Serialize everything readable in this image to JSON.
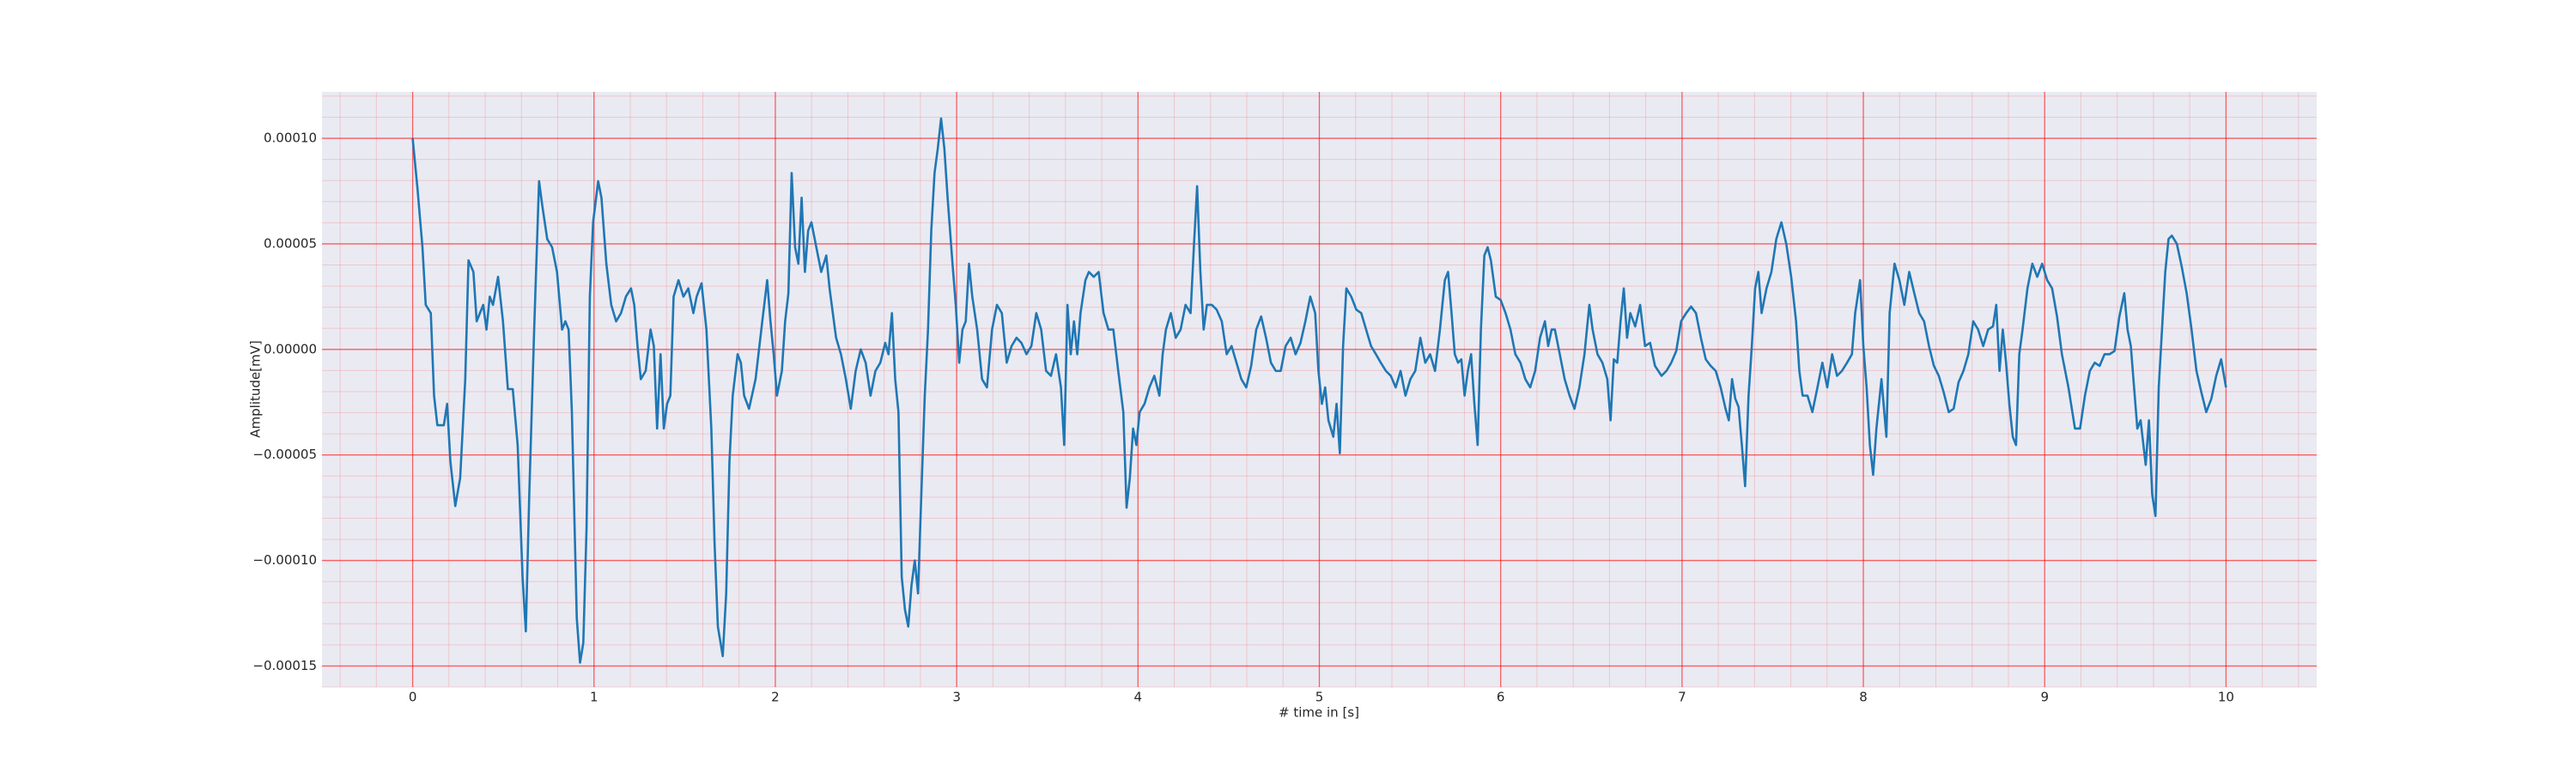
{
  "chart_data": {
    "type": "line",
    "xlabel": "# time in [s]",
    "ylabel": "Amplitude[mV]",
    "xlim": [
      -0.5,
      10.5
    ],
    "ylim": [
      -0.00016,
      0.000122
    ],
    "xticks": [
      0,
      1,
      2,
      3,
      4,
      5,
      6,
      7,
      8,
      9,
      10
    ],
    "yticks": [
      {
        "value": -0.00015,
        "label": "−0.00015"
      },
      {
        "value": -0.0001,
        "label": "−0.00010"
      },
      {
        "value": -5e-05,
        "label": "−0.00005"
      },
      {
        "value": 0,
        "label": "0.00000"
      },
      {
        "value": 5e-05,
        "label": "0.00005"
      },
      {
        "value": 0.0001,
        "label": "0.00010"
      }
    ],
    "xminorticks": [
      -0.4,
      -0.2,
      0.2,
      0.4,
      0.6,
      0.8,
      1.2,
      1.4,
      1.6,
      1.8,
      2.2,
      2.4,
      2.6,
      2.8,
      3.2,
      3.4,
      3.6,
      3.8,
      4.2,
      4.4,
      4.6,
      4.8,
      5.2,
      5.4,
      5.6,
      5.8,
      6.2,
      6.4,
      6.6,
      6.8,
      7.2,
      7.4,
      7.6,
      7.8,
      8.2,
      8.4,
      8.6,
      8.8,
      9.2,
      9.4,
      9.6,
      9.8,
      10.2,
      10.4
    ],
    "yminorticks": [
      -0.00016,
      -0.00014,
      -0.00013,
      -0.00012,
      -0.00011,
      -9e-05,
      -8e-05,
      -7e-05,
      -6e-05,
      -4e-05,
      -3e-05,
      -2e-05,
      -1e-05,
      1e-05,
      2e-05,
      3e-05,
      4e-05,
      6e-05,
      7e-05,
      8e-05,
      9e-05,
      0.00011,
      0.00012
    ],
    "grid": true,
    "minor_grid": true,
    "grid_color": "#ff0000",
    "background": "#eaeaf2",
    "x": [
      0,
      0.027,
      0.054,
      0.072,
      0.1,
      0.118,
      0.136,
      0.172,
      0.19,
      0.208,
      0.235,
      0.262,
      0.29,
      0.308,
      0.335,
      0.353,
      0.371,
      0.389,
      0.407,
      0.425,
      0.443,
      0.471,
      0.498,
      0.525,
      0.552,
      0.579,
      0.606,
      0.624,
      0.643,
      0.67,
      0.697,
      0.715,
      0.742,
      0.769,
      0.796,
      0.824,
      0.842,
      0.86,
      0.878,
      0.905,
      0.923,
      0.941,
      0.959,
      0.977,
      0.995,
      1.023,
      1.041,
      1.068,
      1.095,
      1.122,
      1.149,
      1.176,
      1.204,
      1.222,
      1.24,
      1.258,
      1.285,
      1.312,
      1.33,
      1.348,
      1.367,
      1.385,
      1.403,
      1.421,
      1.439,
      1.466,
      1.493,
      1.52,
      1.548,
      1.566,
      1.593,
      1.62,
      1.647,
      1.665,
      1.683,
      1.71,
      1.729,
      1.747,
      1.765,
      1.792,
      1.81,
      1.828,
      1.855,
      1.891,
      1.928,
      1.955,
      1.973,
      1.991,
      2.009,
      2.036,
      2.054,
      2.072,
      2.09,
      2.109,
      2.127,
      2.145,
      2.163,
      2.181,
      2.199,
      2.226,
      2.253,
      2.281,
      2.299,
      2.317,
      2.335,
      2.362,
      2.389,
      2.416,
      2.443,
      2.471,
      2.498,
      2.525,
      2.552,
      2.579,
      2.606,
      2.624,
      2.643,
      2.661,
      2.679,
      2.697,
      2.715,
      2.733,
      2.751,
      2.769,
      2.787,
      2.805,
      2.824,
      2.842,
      2.86,
      2.878,
      2.896,
      2.914,
      2.932,
      2.95,
      2.977,
      2.995,
      3.014,
      3.032,
      3.05,
      3.068,
      3.086,
      3.113,
      3.14,
      3.167,
      3.195,
      3.222,
      3.249,
      3.276,
      3.303,
      3.33,
      3.357,
      3.385,
      3.412,
      3.439,
      3.466,
      3.493,
      3.52,
      3.548,
      3.575,
      3.593,
      3.611,
      3.629,
      3.647,
      3.665,
      3.683,
      3.71,
      3.729,
      3.756,
      3.783,
      3.81,
      3.837,
      3.864,
      3.891,
      3.919,
      3.937,
      3.955,
      3.973,
      3.991,
      4.009,
      4.036,
      4.063,
      4.09,
      4.118,
      4.136,
      4.154,
      4.181,
      4.208,
      4.235,
      4.262,
      4.29,
      4.308,
      4.326,
      4.344,
      4.362,
      4.38,
      4.407,
      4.434,
      4.462,
      4.489,
      4.516,
      4.543,
      4.57,
      4.597,
      4.624,
      4.652,
      4.679,
      4.706,
      4.733,
      4.76,
      4.787,
      4.814,
      4.842,
      4.869,
      4.896,
      4.923,
      4.95,
      4.977,
      4.995,
      5.014,
      5.032,
      5.05,
      5.077,
      5.095,
      5.113,
      5.131,
      5.149,
      5.176,
      5.204,
      5.231,
      5.258,
      5.285,
      5.312,
      5.339,
      5.367,
      5.394,
      5.421,
      5.448,
      5.475,
      5.502,
      5.529,
      5.557,
      5.584,
      5.611,
      5.638,
      5.665,
      5.692,
      5.71,
      5.729,
      5.747,
      5.765,
      5.783,
      5.801,
      5.819,
      5.837,
      5.855,
      5.873,
      5.891,
      5.91,
      5.928,
      5.946,
      5.973,
      6,
      6.027,
      6.054,
      6.081,
      6.109,
      6.136,
      6.163,
      6.19,
      6.217,
      6.244,
      6.262,
      6.281,
      6.299,
      6.326,
      6.353,
      6.38,
      6.407,
      6.434,
      6.462,
      6.489,
      6.507,
      6.534,
      6.561,
      6.588,
      6.606,
      6.624,
      6.643,
      6.661,
      6.679,
      6.697,
      6.715,
      6.742,
      6.769,
      6.796,
      6.824,
      6.851,
      6.887,
      6.914,
      6.941,
      6.968,
      6.995,
      7.023,
      7.05,
      7.077,
      7.104,
      7.131,
      7.158,
      7.186,
      7.213,
      7.24,
      7.258,
      7.276,
      7.294,
      7.312,
      7.33,
      7.348,
      7.367,
      7.385,
      7.403,
      7.421,
      7.439,
      7.466,
      7.493,
      7.52,
      7.548,
      7.575,
      7.602,
      7.629,
      7.647,
      7.665,
      7.692,
      7.719,
      7.747,
      7.774,
      7.801,
      7.828,
      7.855,
      7.882,
      7.91,
      7.937,
      7.955,
      7.982,
      8,
      8.018,
      8.036,
      8.054,
      8.072,
      8.1,
      8.127,
      8.145,
      8.172,
      8.199,
      8.226,
      8.253,
      8.281,
      8.308,
      8.335,
      8.362,
      8.389,
      8.416,
      8.443,
      8.471,
      8.498,
      8.525,
      8.552,
      8.579,
      8.606,
      8.633,
      8.661,
      8.688,
      8.715,
      8.733,
      8.751,
      8.769,
      8.787,
      8.805,
      8.824,
      8.842,
      8.86,
      8.878,
      8.905,
      8.932,
      8.959,
      8.986,
      9.014,
      9.041,
      9.068,
      9.095,
      9.131,
      9.167,
      9.195,
      9.222,
      9.249,
      9.276,
      9.303,
      9.33,
      9.357,
      9.385,
      9.412,
      9.439,
      9.457,
      9.475,
      9.493,
      9.511,
      9.529,
      9.557,
      9.575,
      9.593,
      9.611,
      9.629,
      9.647,
      9.665,
      9.683,
      9.701,
      9.729,
      9.756,
      9.783,
      9.81,
      9.837,
      9.864,
      9.891,
      9.919,
      9.946,
      9.973,
      10
    ],
    "series": [
      {
        "color": "#1f77b4",
        "values": [
          0.0001,
          7.58e-05,
          4.84e-05,
          2.11e-05,
          1.72e-05,
          -2.19e-05,
          -3.59e-05,
          -3.59e-05,
          -2.58e-05,
          -5.31e-05,
          -7.42e-05,
          -6.09e-05,
          -1.41e-05,
          4.22e-05,
          3.67e-05,
          1.33e-05,
          1.72e-05,
          2.11e-05,
          9.4e-06,
          2.5e-05,
          2.11e-05,
          3.44e-05,
          1.33e-05,
          -1.88e-05,
          -1.88e-05,
          -4.53e-05,
          -0.0001078,
          -0.0001336,
          -6.88e-05,
          9.4e-06,
          7.97e-05,
          6.8e-05,
          5.23e-05,
          4.84e-05,
          3.67e-05,
          9.4e-06,
          1.33e-05,
          9.4e-06,
          -2.97e-05,
          -0.0001273,
          -0.0001484,
          -0.0001391,
          -8.44e-05,
          2.5e-05,
          6.02e-05,
          7.97e-05,
          7.19e-05,
          4.06e-05,
          2.11e-05,
          1.33e-05,
          1.72e-05,
          2.5e-05,
          2.89e-05,
          2.11e-05,
          1.6e-06,
          -1.41e-05,
          -1.02e-05,
          9.4e-06,
          1.6e-06,
          -3.75e-05,
          -2.3e-06,
          -3.75e-05,
          -2.58e-05,
          -2.19e-05,
          2.5e-05,
          3.28e-05,
          2.5e-05,
          2.89e-05,
          1.72e-05,
          2.5e-05,
          3.13e-05,
          9.4e-06,
          -3.75e-05,
          -9.22e-05,
          -0.0001313,
          -0.0001453,
          -0.0001156,
          -5.31e-05,
          -2.19e-05,
          -2.3e-06,
          -6.3e-06,
          -2.19e-05,
          -2.81e-05,
          -1.41e-05,
          1.33e-05,
          3.28e-05,
          1.33e-05,
          -2.3e-06,
          -2.19e-05,
          -1.02e-05,
          1.33e-05,
          2.66e-05,
          8.36e-05,
          4.84e-05,
          4.06e-05,
          7.19e-05,
          3.67e-05,
          5.63e-05,
          6.02e-05,
          4.84e-05,
          3.67e-05,
          4.45e-05,
          2.89e-05,
          1.72e-05,
          5.5e-06,
          -2.3e-06,
          -1.41e-05,
          -2.81e-05,
          -1.02e-05,
          0,
          -6.3e-06,
          -2.19e-05,
          -1.02e-05,
          -6.3e-06,
          3.1e-06,
          -2.3e-06,
          1.72e-05,
          -1.41e-05,
          -2.97e-05,
          -0.0001078,
          -0.0001234,
          -0.0001313,
          -0.0001117,
          -0.0001,
          -0.0001156,
          -6.88e-05,
          -2.19e-05,
          9.4e-06,
          5.63e-05,
          8.36e-05,
          9.53e-05,
          0.0001094,
          9.53e-05,
          7.19e-05,
          4.06e-05,
          2.11e-05,
          -6.3e-06,
          9.4e-06,
          1.33e-05,
          4.06e-05,
          2.5e-05,
          9.4e-06,
          -1.41e-05,
          -1.8e-05,
          9.4e-06,
          2.11e-05,
          1.72e-05,
          -6.3e-06,
          1.6e-06,
          5.5e-06,
          3.1e-06,
          -2.3e-06,
          1.6e-06,
          1.72e-05,
          9.4e-06,
          -1.02e-05,
          -1.25e-05,
          -2.3e-06,
          -1.8e-05,
          -4.53e-05,
          2.11e-05,
          -2.3e-06,
          1.33e-05,
          -2.3e-06,
          1.72e-05,
          3.28e-05,
          3.67e-05,
          3.44e-05,
          3.67e-05,
          1.72e-05,
          9.4e-06,
          9.4e-06,
          -1.02e-05,
          -2.97e-05,
          -7.5e-05,
          -6.09e-05,
          -3.75e-05,
          -4.53e-05,
          -2.97e-05,
          -2.58e-05,
          -1.8e-05,
          -1.25e-05,
          -2.19e-05,
          -2.3e-06,
          9.4e-06,
          1.72e-05,
          5.5e-06,
          9.4e-06,
          2.11e-05,
          1.72e-05,
          4.84e-05,
          7.73e-05,
          3.67e-05,
          9.4e-06,
          2.11e-05,
          2.11e-05,
          1.88e-05,
          1.33e-05,
          -2.3e-06,
          1.6e-06,
          -6.3e-06,
          -1.41e-05,
          -1.8e-05,
          -7.8e-06,
          9.4e-06,
          1.56e-05,
          5.5e-06,
          -6.3e-06,
          -1.02e-05,
          -1.02e-05,
          1.6e-06,
          5.5e-06,
          -2.3e-06,
          3.1e-06,
          1.33e-05,
          2.5e-05,
          1.72e-05,
          -1.02e-05,
          -2.58e-05,
          -1.8e-05,
          -3.36e-05,
          -4.14e-05,
          -2.58e-05,
          -4.92e-05,
          1.6e-06,
          2.89e-05,
          2.5e-05,
          1.88e-05,
          1.72e-05,
          9.4e-06,
          1.6e-06,
          -2.3e-06,
          -6.3e-06,
          -1.02e-05,
          -1.25e-05,
          -1.8e-05,
          -1.02e-05,
          -2.19e-05,
          -1.41e-05,
          -1.02e-05,
          5.5e-06,
          -6.3e-06,
          -2.3e-06,
          -1.02e-05,
          9.4e-06,
          3.28e-05,
          3.67e-05,
          1.72e-05,
          -2.3e-06,
          -6.3e-06,
          -4.7e-06,
          -2.19e-05,
          -1.02e-05,
          -2.3e-06,
          -2.58e-05,
          -4.53e-05,
          9.4e-06,
          4.45e-05,
          4.84e-05,
          4.22e-05,
          2.5e-05,
          2.34e-05,
          1.72e-05,
          9.4e-06,
          -2.3e-06,
          -6.3e-06,
          -1.41e-05,
          -1.8e-05,
          -1.02e-05,
          5.5e-06,
          1.33e-05,
          1.6e-06,
          9.4e-06,
          9.4e-06,
          -2.3e-06,
          -1.41e-05,
          -2.19e-05,
          -2.81e-05,
          -1.8e-05,
          -2.3e-06,
          2.11e-05,
          9.4e-06,
          -2.3e-06,
          -6.3e-06,
          -1.41e-05,
          -3.36e-05,
          -4.7e-06,
          -6.3e-06,
          1.33e-05,
          2.89e-05,
          5.5e-06,
          1.72e-05,
          1.09e-05,
          2.11e-05,
          1.6e-06,
          3.1e-06,
          -7.8e-06,
          -1.25e-05,
          -1.02e-05,
          -6.3e-06,
          -8e-07,
          1.33e-05,
          1.72e-05,
          2.03e-05,
          1.72e-05,
          5.5e-06,
          -4.7e-06,
          -7.8e-06,
          -1.02e-05,
          -1.8e-05,
          -2.81e-05,
          -3.36e-05,
          -1.41e-05,
          -2.34e-05,
          -2.73e-05,
          -4.53e-05,
          -6.48e-05,
          -2.19e-05,
          1.6e-06,
          2.89e-05,
          3.67e-05,
          1.72e-05,
          2.89e-05,
          3.67e-05,
          5.23e-05,
          6.02e-05,
          5e-05,
          3.44e-05,
          1.33e-05,
          -1.02e-05,
          -2.19e-05,
          -2.19e-05,
          -2.97e-05,
          -1.8e-05,
          -6.3e-06,
          -1.8e-05,
          -2.3e-06,
          -1.25e-05,
          -1.02e-05,
          -6.3e-06,
          -2.3e-06,
          1.72e-05,
          3.28e-05,
          1.6e-06,
          -1.8e-05,
          -4.53e-05,
          -5.94e-05,
          -3.75e-05,
          -1.41e-05,
          -4.14e-05,
          1.72e-05,
          4.06e-05,
          3.28e-05,
          2.11e-05,
          3.67e-05,
          2.66e-05,
          1.72e-05,
          1.33e-05,
          1.6e-06,
          -7.8e-06,
          -1.25e-05,
          -2.03e-05,
          -2.97e-05,
          -2.81e-05,
          -1.56e-05,
          -1.02e-05,
          -2.3e-06,
          1.33e-05,
          9.4e-06,
          1.6e-06,
          9.4e-06,
          1.09e-05,
          2.11e-05,
          -1.02e-05,
          9.4e-06,
          -6.3e-06,
          -2.58e-05,
          -4.14e-05,
          -4.53e-05,
          -2.3e-06,
          9.4e-06,
          2.89e-05,
          4.06e-05,
          3.44e-05,
          4.06e-05,
          3.28e-05,
          2.89e-05,
          1.56e-05,
          -2.3e-06,
          -1.8e-05,
          -3.75e-05,
          -3.75e-05,
          -2.19e-05,
          -1.02e-05,
          -6.3e-06,
          -7.8e-06,
          -2.3e-06,
          -2.3e-06,
          -8e-07,
          1.56e-05,
          2.66e-05,
          9.4e-06,
          1.6e-06,
          -1.8e-05,
          -3.75e-05,
          -3.36e-05,
          -5.47e-05,
          -3.36e-05,
          -6.88e-05,
          -7.89e-05,
          -1.8e-05,
          9.4e-06,
          3.67e-05,
          5.23e-05,
          5.39e-05,
          5e-05,
          3.91e-05,
          2.66e-05,
          9.4e-06,
          -1.02e-05,
          -2.03e-05,
          -2.97e-05,
          -2.34e-05,
          -1.25e-05,
          -4.7e-06,
          -1.8e-05
        ]
      }
    ]
  }
}
